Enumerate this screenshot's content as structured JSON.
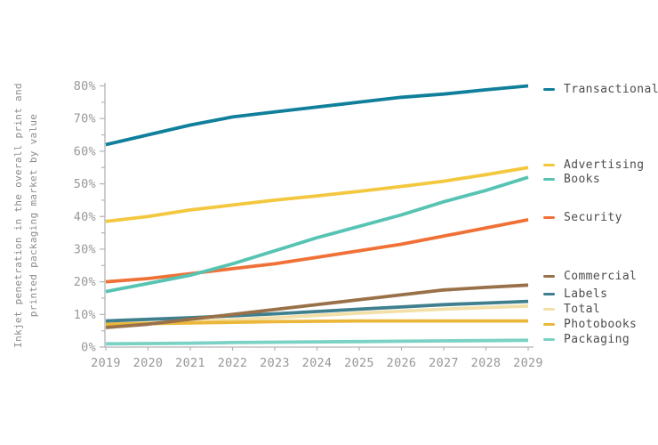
{
  "figure": {
    "y_axis_title_lines": [
      "Inkjet penetration in the overall print and",
      "printed packaging market by value"
    ]
  },
  "chart_data": {
    "type": "line",
    "title": "",
    "xlabel": "",
    "ylabel": "Inkjet penetration in the overall print and printed packaging market by value",
    "x": [
      2019,
      2020,
      2021,
      2022,
      2023,
      2024,
      2025,
      2026,
      2027,
      2028,
      2029
    ],
    "ylim": [
      0,
      80
    ],
    "y_tick_major": 10,
    "y_tick_minor": 5,
    "y_tick_suffix": "%",
    "grid": false,
    "legend_position": "right",
    "series": [
      {
        "name": "Transactional",
        "color": "#0F7F9B",
        "values": [
          62,
          65,
          68,
          70.5,
          72,
          73.5,
          75,
          76.5,
          77.5,
          78.8,
          80
        ]
      },
      {
        "name": "Advertising",
        "color": "#F3C73E",
        "values": [
          38.5,
          40,
          42,
          43.5,
          45,
          46.3,
          47.7,
          49.2,
          50.8,
          52.8,
          55
        ]
      },
      {
        "name": "Books",
        "color": "#56C3B3",
        "values": [
          17,
          19.5,
          22,
          25.5,
          29.5,
          33.5,
          37,
          40.5,
          44.5,
          48,
          52
        ]
      },
      {
        "name": "Security",
        "color": "#F07137",
        "values": [
          20,
          21,
          22.5,
          24,
          25.5,
          27.5,
          29.5,
          31.5,
          34,
          36.5,
          39
        ]
      },
      {
        "name": "Commercial",
        "color": "#997149",
        "values": [
          6,
          7,
          8.5,
          10,
          11.5,
          13,
          14.5,
          16,
          17.5,
          18.3,
          19
        ]
      },
      {
        "name": "Labels",
        "color": "#3F7F8E",
        "values": [
          8,
          8.5,
          9,
          9.6,
          10.2,
          10.9,
          11.6,
          12.3,
          13,
          13.5,
          14
        ]
      },
      {
        "name": "Total",
        "color": "#F3E0A9",
        "values": [
          7,
          7.4,
          7.9,
          8.4,
          9,
          9.7,
          10.4,
          11,
          11.6,
          12.1,
          12.6
        ]
      },
      {
        "name": "Photobooks",
        "color": "#EBB73B",
        "values": [
          7,
          7.2,
          7.4,
          7.6,
          7.8,
          7.9,
          8,
          8,
          8,
          8,
          8
        ]
      },
      {
        "name": "Packaging",
        "color": "#79D2C3",
        "values": [
          1,
          1.1,
          1.2,
          1.4,
          1.5,
          1.6,
          1.7,
          1.8,
          1.9,
          2,
          2.1
        ]
      }
    ]
  },
  "colors": {
    "axis": "#b3b3b3",
    "tick_label": "#989898",
    "axis_title": "#8c8c8c",
    "legend_text": "#4d4d4d",
    "background": "#ffffff"
  }
}
